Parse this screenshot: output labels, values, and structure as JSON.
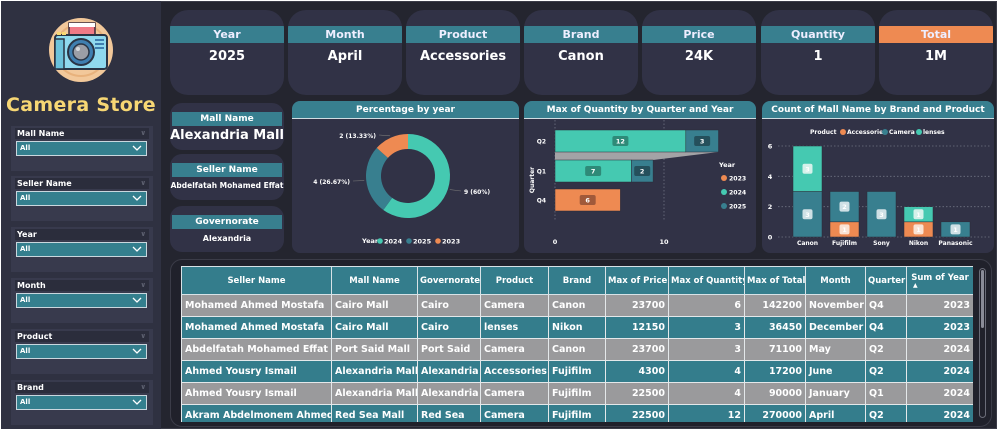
{
  "app": {
    "title": "Camera Store",
    "logo_icon": "camera-icon"
  },
  "colors": {
    "teal": "#387f8f",
    "mint": "#45c9b1",
    "orange": "#ee8a52",
    "title_yellow": "#f7d774",
    "panel": "#313246",
    "background": "#24252f"
  },
  "slicers": [
    {
      "label": "Mall Name",
      "value": "All"
    },
    {
      "label": "Seller Name",
      "value": "All"
    },
    {
      "label": "Year",
      "value": "All"
    },
    {
      "label": "Month",
      "value": "All"
    },
    {
      "label": "Product",
      "value": "All"
    },
    {
      "label": "Brand",
      "value": "All"
    }
  ],
  "kpis": [
    {
      "label": "Year",
      "value": "2025"
    },
    {
      "label": "Month",
      "value": "April"
    },
    {
      "label": "Product",
      "value": "Accessories"
    },
    {
      "label": "Brand",
      "value": "Canon"
    },
    {
      "label": "Price",
      "value": "24K"
    },
    {
      "label": "Quantity",
      "value": "1"
    },
    {
      "label": "Total",
      "value": "1M"
    }
  ],
  "info_cards": [
    {
      "label": "Mall Name",
      "value": "Alexandria Mall"
    },
    {
      "label": "Seller Name",
      "value": "Abdelfatah Mohamed Effat"
    },
    {
      "label": "Governorate",
      "value": "Alexandria"
    }
  ],
  "chart_data": [
    {
      "type": "pie",
      "variant": "donut",
      "title": "Percentage by year",
      "legend_title": "Year",
      "legend_position": "bottom",
      "categories": [
        "2024",
        "2025",
        "2023"
      ],
      "values": [
        9,
        4,
        2
      ],
      "labels": [
        "9 (60%)",
        "4 (26.67%)",
        "2 (13.33%)"
      ],
      "colors": [
        "#45c9b1",
        "#387f8f",
        "#ee8a52"
      ]
    },
    {
      "type": "bar",
      "variant": "ribbon-horizontal-stacked",
      "title": "Max of Quantity by Quarter and Year",
      "ylabel": "Quarter",
      "xlabel": "",
      "categories": [
        "Q2",
        "Q1",
        "Q4"
      ],
      "series": [
        {
          "name": "2023",
          "values": [
            0,
            0,
            6
          ],
          "color": "#ee8a52"
        },
        {
          "name": "2024",
          "values": [
            12,
            7,
            0
          ],
          "color": "#45c9b1"
        },
        {
          "name": "2025",
          "values": [
            3,
            2,
            0
          ],
          "color": "#387f8f"
        }
      ],
      "legend_title": "Year",
      "legend_order": [
        "2023",
        "2024",
        "2025"
      ],
      "legend_position": "right",
      "xticks": [
        "0",
        "10"
      ],
      "xlim": [
        0,
        15
      ],
      "grid": true
    },
    {
      "type": "bar",
      "variant": "vertical-stacked",
      "title": "Count of Mall Name by Brand and Product",
      "legend_title": "Product",
      "legend_position": "top",
      "categories": [
        "Canon",
        "Fujifilm",
        "Sony",
        "Nikon",
        "Panasonic"
      ],
      "series": [
        {
          "name": "Accessories",
          "values": [
            0,
            1,
            0,
            1,
            0
          ],
          "color": "#ee8a52"
        },
        {
          "name": "Camera",
          "values": [
            3,
            2,
            3,
            0,
            1
          ],
          "color": "#387f8f"
        },
        {
          "name": "lenses",
          "values": [
            3,
            0,
            0,
            1,
            0
          ],
          "color": "#45c9b1"
        }
      ],
      "yticks": [
        "0",
        "2",
        "4",
        "6"
      ],
      "ylim": [
        0,
        6
      ],
      "grid": true
    }
  ],
  "table": {
    "columns": [
      "Seller Name",
      "Mall Name",
      "Governorate",
      "Product",
      "Brand",
      "Max of Price",
      "Max of Quantity",
      "Max of Total",
      "Month",
      "Quarter",
      "Sum of Year"
    ],
    "sort_indicator": "▲",
    "rows": [
      [
        "Mohamed Ahmed Mostafa",
        "Cairo Mall",
        "Cairo",
        "Camera",
        "Canon",
        "23700",
        "6",
        "142200",
        "November",
        "Q4",
        "2023"
      ],
      [
        "Mohamed Ahmed Mostafa",
        "Cairo Mall",
        "Cairo",
        "lenses",
        "Nikon",
        "12150",
        "3",
        "36450",
        "December",
        "Q4",
        "2023"
      ],
      [
        "Abdelfatah Mohamed Effat",
        "Port Said Mall",
        "Port Said",
        "Camera",
        "Canon",
        "23700",
        "3",
        "71100",
        "May",
        "Q2",
        "2024"
      ],
      [
        "Ahmed Yousry Ismail",
        "Alexandria Mall",
        "Alexandria",
        "Accessories",
        "Fujifilm",
        "4300",
        "4",
        "17200",
        "June",
        "Q2",
        "2024"
      ],
      [
        "Ahmed Yousry Ismail",
        "Alexandria Mall",
        "Alexandria",
        "Camera",
        "Fujifilm",
        "22500",
        "4",
        "90000",
        "January",
        "Q1",
        "2024"
      ],
      [
        "Akram Abdelmonem Ahmed",
        "Red Sea Mall",
        "Red Sea",
        "Camera",
        "Fujifilm",
        "22500",
        "12",
        "270000",
        "April",
        "Q2",
        "2024"
      ]
    ]
  }
}
